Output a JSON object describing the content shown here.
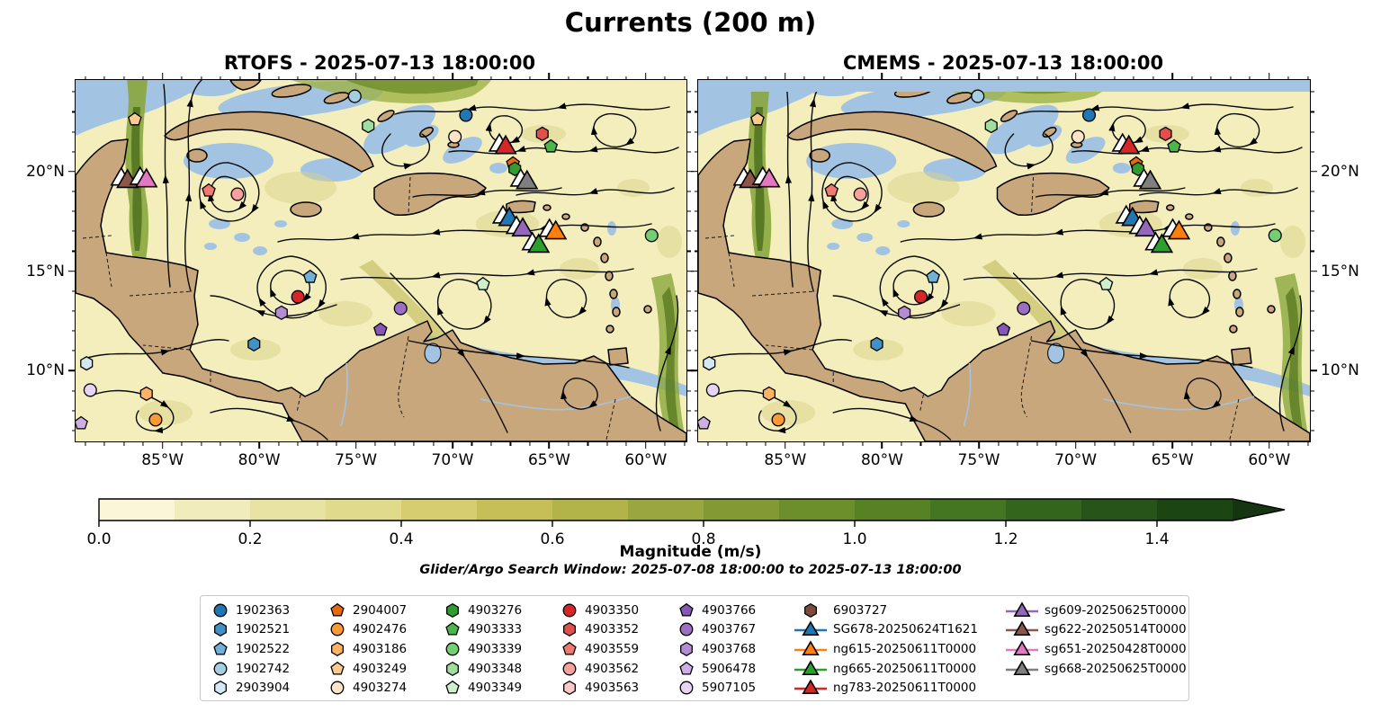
{
  "title": "Currents (200 m)",
  "annotation": "Glider/Argo Search Window: 2025-07-08 18:00:00 to 2025-07-13 18:00:00",
  "chart_data": {
    "type": "map-streamplot",
    "title": "Currents (200 m)",
    "panels": [
      {
        "model": "RTOFS",
        "subtitle": "RTOFS - 2025-07-13 18:00:00",
        "y_labels_side": "left",
        "no_data_top_strip": false
      },
      {
        "model": "CMEMS",
        "subtitle": "CMEMS - 2025-07-13 18:00:00",
        "y_labels_side": "right",
        "no_data_top_strip": true
      }
    ],
    "axes": {
      "lon_range_w": [
        89.5,
        57.9
      ],
      "lat_range_n": [
        24.6,
        6.45
      ],
      "lon_ticks": [
        {
          "v": 85,
          "label": "85°W"
        },
        {
          "v": 80,
          "label": "80°W"
        },
        {
          "v": 75,
          "label": "75°W"
        },
        {
          "v": 70,
          "label": "70°W"
        },
        {
          "v": 65,
          "label": "65°W"
        },
        {
          "v": 60,
          "label": "60°W"
        }
      ],
      "lat_ticks": [
        {
          "v": 20,
          "label": "20°N"
        },
        {
          "v": 15,
          "label": "15°N"
        },
        {
          "v": 10,
          "label": "10°N"
        }
      ]
    },
    "colorbar": {
      "label": "Magnitude (m/s)",
      "vmin": 0.0,
      "vmax": 1.5,
      "extend_max": true,
      "tick_labels": [
        "0.0",
        "0.2",
        "0.4",
        "0.6",
        "0.8",
        "1.0",
        "1.2",
        "1.4"
      ],
      "tick_values": [
        0.0,
        0.2,
        0.4,
        0.6,
        0.8,
        1.0,
        1.2,
        1.4
      ],
      "segment_colors": [
        "#faf6d7",
        "#f1ecbc",
        "#e9e3a3",
        "#e0da8b",
        "#d5cd70",
        "#c6bf58",
        "#b2b449",
        "#9aa73e",
        "#839a34",
        "#6c8e2b",
        "#578224",
        "#447520",
        "#34651d",
        "#275519",
        "#1c4514"
      ],
      "arrow_color": "#143510"
    },
    "map_colors": {
      "ocean_low": "#f3eebc",
      "land": "#c9a77c",
      "no_data_shallow": "#a3c3e3",
      "current_mid": "#9aa73e",
      "current_high": "#55761f",
      "coastline": "#000000"
    },
    "markers": [
      {
        "id": "4903249",
        "type": "float",
        "shape": "pentagon",
        "color": "#fdca92",
        "fx": 0.097,
        "fy": 0.109,
        "lon_w": 86.4,
        "lat_n": 22.6
      },
      {
        "id": "1902742",
        "type": "float",
        "shape": "circle",
        "color": "#a6cee3",
        "fx": 0.457,
        "fy": 0.045,
        "lon_w": 75.1,
        "lat_n": 23.8
      },
      {
        "id": "1902363",
        "type": "float",
        "shape": "circle",
        "color": "#1f77b4",
        "fx": 0.639,
        "fy": 0.097,
        "lon_w": 69.3,
        "lat_n": 22.8
      },
      {
        "id": "4903274",
        "type": "float",
        "shape": "circle",
        "color": "#fde4c8",
        "fx": 0.621,
        "fy": 0.157,
        "lon_w": 69.9,
        "lat_n": 21.8
      },
      {
        "id": "4903348",
        "type": "float",
        "shape": "hexagon",
        "color": "#a1dd9e",
        "fx": 0.479,
        "fy": 0.127,
        "lon_w": 74.4,
        "lat_n": 22.3
      },
      {
        "id": "4903352",
        "type": "float",
        "shape": "hexagon",
        "color": "#e2504d",
        "fx": 0.764,
        "fy": 0.149,
        "lon_w": 65.4,
        "lat_n": 21.9
      },
      {
        "id": "4903333",
        "type": "float",
        "shape": "pentagon",
        "color": "#4cb54c",
        "fx": 0.778,
        "fy": 0.184,
        "lon_w": 64.9,
        "lat_n": 21.3
      },
      {
        "id": "2904007",
        "type": "float",
        "shape": "pentagon",
        "color": "#e66a0c",
        "fx": 0.716,
        "fy": 0.231,
        "lon_w": 66.9,
        "lat_n": 20.4
      },
      {
        "id": "4903276",
        "type": "float",
        "shape": "hexagon",
        "color": "#2f9e2f",
        "fx": 0.719,
        "fy": 0.246,
        "lon_w": 66.8,
        "lat_n": 20.1
      },
      {
        "id": "4903559",
        "type": "float",
        "shape": "pentagon",
        "color": "#ef7a72",
        "fx": 0.218,
        "fy": 0.306,
        "lon_w": 82.6,
        "lat_n": 19.0
      },
      {
        "id": "4903562",
        "type": "float",
        "shape": "circle",
        "color": "#f8a19c",
        "fx": 0.265,
        "fy": 0.316,
        "lon_w": 81.1,
        "lat_n": 18.9
      },
      {
        "id": "4903339",
        "type": "float",
        "shape": "circle",
        "color": "#74ce74",
        "fx": 0.943,
        "fy": 0.43,
        "lon_w": 59.7,
        "lat_n": 16.8
      },
      {
        "id": "4903349",
        "type": "float",
        "shape": "pentagon",
        "color": "#cdf0ca",
        "fx": 0.667,
        "fy": 0.565,
        "lon_w": 68.4,
        "lat_n": 14.3
      },
      {
        "id": "1902522",
        "type": "float",
        "shape": "pentagon",
        "color": "#71b1d7",
        "fx": 0.384,
        "fy": 0.545,
        "lon_w": 77.4,
        "lat_n": 14.7
      },
      {
        "id": "4903350",
        "type": "float",
        "shape": "circle",
        "color": "#d62728",
        "fx": 0.364,
        "fy": 0.6,
        "lon_w": 78.0,
        "lat_n": 13.7
      },
      {
        "id": "4903768",
        "type": "float",
        "shape": "hexagon",
        "color": "#b48cd3",
        "fx": 0.337,
        "fy": 0.644,
        "lon_w": 78.9,
        "lat_n": 12.9
      },
      {
        "id": "4903767",
        "type": "float",
        "shape": "circle",
        "color": "#9d6fc3",
        "fx": 0.532,
        "fy": 0.632,
        "lon_w": 72.7,
        "lat_n": 13.1
      },
      {
        "id": "4903766",
        "type": "float",
        "shape": "pentagon",
        "color": "#8856b4",
        "fx": 0.499,
        "fy": 0.691,
        "lon_w": 73.7,
        "lat_n": 12.1
      },
      {
        "id": "1902521",
        "type": "float",
        "shape": "hexagon",
        "color": "#4191c6",
        "fx": 0.292,
        "fy": 0.731,
        "lon_w": 80.3,
        "lat_n": 11.3
      },
      {
        "id": "2903904",
        "type": "float",
        "shape": "hexagon",
        "color": "#d4e8f4",
        "fx": 0.018,
        "fy": 0.784,
        "lon_w": 88.9,
        "lat_n": 10.4
      },
      {
        "id": "5907105",
        "type": "float",
        "shape": "circle",
        "color": "#e6d4f2",
        "fx": 0.024,
        "fy": 0.858,
        "lon_w": 88.7,
        "lat_n": 9.0
      },
      {
        "id": "4903186",
        "type": "float",
        "shape": "hexagon",
        "color": "#fdb264",
        "fx": 0.116,
        "fy": 0.868,
        "lon_w": 85.8,
        "lat_n": 8.8
      },
      {
        "id": "4902476",
        "type": "float",
        "shape": "circle",
        "color": "#fb9a35",
        "fx": 0.131,
        "fy": 0.94,
        "lon_w": 85.4,
        "lat_n": 7.5
      },
      {
        "id": "5906478",
        "type": "float",
        "shape": "pentagon",
        "color": "#cdafe3",
        "fx": 0.009,
        "fy": 0.95,
        "lon_w": 89.2,
        "lat_n": 7.4
      },
      {
        "id": "sg622-20250514T0000",
        "type": "glider",
        "shape": "triangle",
        "color": "#8c564b",
        "fx": 0.085,
        "fy": 0.281,
        "lon_w": 86.8,
        "lat_n": 19.5
      },
      {
        "id": "sg651-20250428T0000",
        "type": "glider",
        "shape": "triangle",
        "color": "#e377c2",
        "fx": 0.116,
        "fy": 0.279,
        "lon_w": 85.8,
        "lat_n": 19.5
      },
      {
        "id": "ng783-20250611T0000",
        "type": "glider",
        "shape": "triangle",
        "color": "#d62728",
        "fx": 0.704,
        "fy": 0.187,
        "lon_w": 67.3,
        "lat_n": 21.2
      },
      {
        "id": "sg668-20250625T0000",
        "type": "glider",
        "shape": "triangle",
        "color": "#7f7f7f",
        "fx": 0.739,
        "fy": 0.284,
        "lon_w": 66.1,
        "lat_n": 19.4
      },
      {
        "id": "SG678-20250624T1621",
        "type": "glider",
        "shape": "triangle",
        "color": "#1f77b4",
        "fx": 0.71,
        "fy": 0.386,
        "lon_w": 67.1,
        "lat_n": 17.6
      },
      {
        "id": "sg609-20250625T0000",
        "type": "glider",
        "shape": "triangle",
        "color": "#9467bd",
        "fx": 0.732,
        "fy": 0.415,
        "lon_w": 66.4,
        "lat_n": 17.1
      },
      {
        "id": "ng665-20250611T0000",
        "type": "glider",
        "shape": "triangle",
        "color": "#2ca02c",
        "fx": 0.758,
        "fy": 0.46,
        "lon_w": 65.5,
        "lat_n": 16.3
      },
      {
        "id": "ng615-20250611T0000",
        "type": "glider",
        "shape": "triangle",
        "color": "#ff7f0e",
        "fx": 0.786,
        "fy": 0.423,
        "lon_w": 64.7,
        "lat_n": 16.9
      }
    ],
    "legend": {
      "columns": [
        [
          {
            "label": "1902363",
            "shape": "circle",
            "color": "#1f77b4"
          },
          {
            "label": "1902521",
            "shape": "hexagon",
            "color": "#4191c6"
          },
          {
            "label": "1902522",
            "shape": "pentagon",
            "color": "#71b1d7"
          },
          {
            "label": "1902742",
            "shape": "circle",
            "color": "#a6cee3"
          },
          {
            "label": "2903904",
            "shape": "hexagon",
            "color": "#d4e8f4"
          }
        ],
        [
          {
            "label": "2904007",
            "shape": "pentagon",
            "color": "#e66a0c"
          },
          {
            "label": "4902476",
            "shape": "circle",
            "color": "#fb9a35"
          },
          {
            "label": "4903186",
            "shape": "hexagon",
            "color": "#fdb264"
          },
          {
            "label": "4903249",
            "shape": "pentagon",
            "color": "#fdca92"
          },
          {
            "label": "4903274",
            "shape": "circle",
            "color": "#fde4c8"
          }
        ],
        [
          {
            "label": "4903276",
            "shape": "hexagon",
            "color": "#2f9e2f"
          },
          {
            "label": "4903333",
            "shape": "pentagon",
            "color": "#4cb54c"
          },
          {
            "label": "4903339",
            "shape": "circle",
            "color": "#74ce74"
          },
          {
            "label": "4903348",
            "shape": "hexagon",
            "color": "#a1dd9e"
          },
          {
            "label": "4903349",
            "shape": "pentagon",
            "color": "#cdf0ca"
          }
        ],
        [
          {
            "label": "4903350",
            "shape": "circle",
            "color": "#d62728"
          },
          {
            "label": "4903352",
            "shape": "hexagon",
            "color": "#e2504d"
          },
          {
            "label": "4903559",
            "shape": "pentagon",
            "color": "#ef7a72"
          },
          {
            "label": "4903562",
            "shape": "circle",
            "color": "#f8a19c"
          },
          {
            "label": "4903563",
            "shape": "hexagon",
            "color": "#fbc9c9"
          }
        ],
        [
          {
            "label": "4903766",
            "shape": "pentagon",
            "color": "#8856b4"
          },
          {
            "label": "4903767",
            "shape": "circle",
            "color": "#9d6fc3"
          },
          {
            "label": "4903768",
            "shape": "hexagon",
            "color": "#b48cd3"
          },
          {
            "label": "5906478",
            "shape": "pentagon",
            "color": "#cdafe3"
          },
          {
            "label": "5907105",
            "shape": "circle",
            "color": "#e6d4f2"
          }
        ],
        [
          {
            "label": "6903727",
            "shape": "hexagon",
            "color": "#7d4a3c"
          },
          {
            "label": "SG678-20250624T1621",
            "shape": "triangle",
            "color": "#1f77b4"
          },
          {
            "label": "ng615-20250611T0000",
            "shape": "triangle",
            "color": "#ff7f0e"
          },
          {
            "label": "ng665-20250611T0000",
            "shape": "triangle",
            "color": "#2ca02c"
          },
          {
            "label": "ng783-20250611T0000",
            "shape": "triangle",
            "color": "#d62728"
          }
        ],
        [
          {
            "label": "sg609-20250625T0000",
            "shape": "triangle",
            "color": "#9467bd"
          },
          {
            "label": "sg622-20250514T0000",
            "shape": "triangle",
            "color": "#8c564b"
          },
          {
            "label": "sg651-20250428T0000",
            "shape": "triangle",
            "color": "#e377c2"
          },
          {
            "label": "sg668-20250625T0000",
            "shape": "triangle",
            "color": "#7f7f7f"
          }
        ]
      ]
    }
  }
}
